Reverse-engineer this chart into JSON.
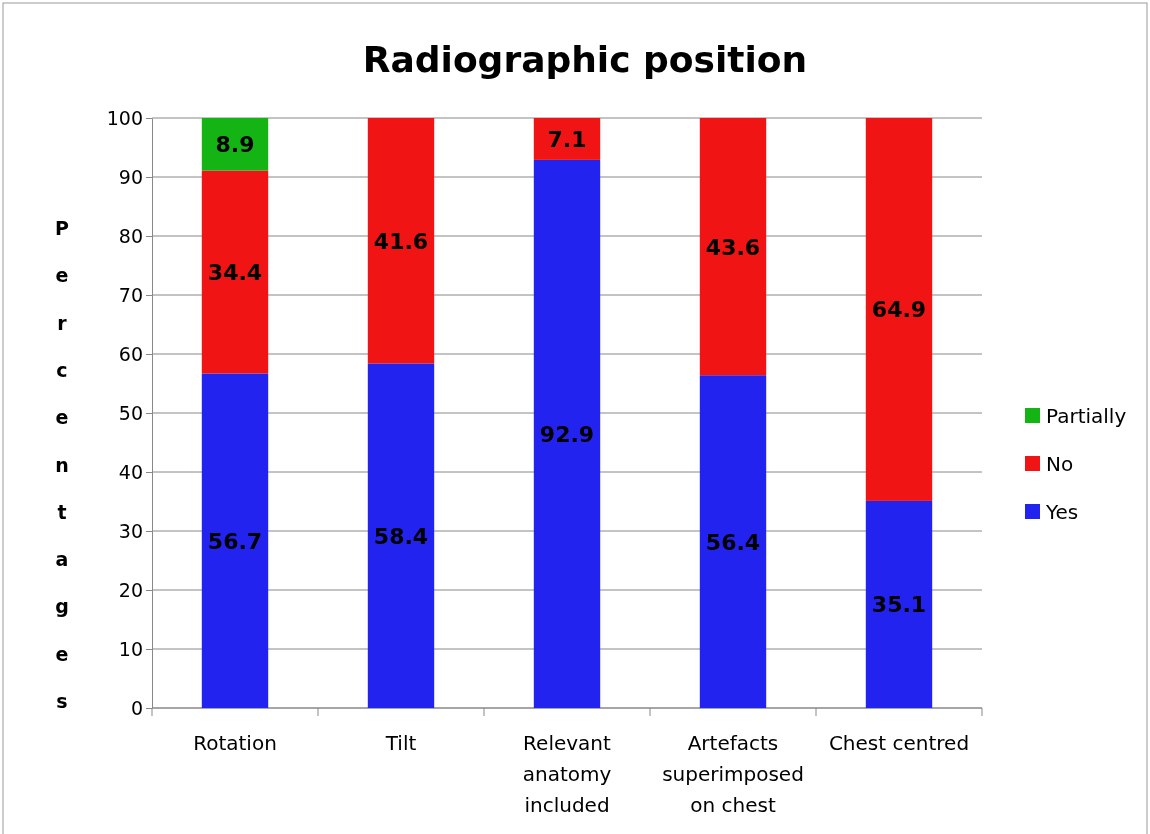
{
  "chart_data": {
    "type": "bar",
    "title": "Radiographic position",
    "ylabel": "Percentages",
    "categories": [
      "Rotation",
      "Tilt",
      "Relevant anatomy included",
      "Artefacts superimposed on chest",
      "Chest centred"
    ],
    "series": [
      {
        "name": "Yes",
        "color": "#2323f0",
        "values": [
          56.7,
          58.4,
          92.9,
          56.4,
          35.1
        ]
      },
      {
        "name": "No",
        "color": "#f01414",
        "values": [
          34.4,
          41.6,
          7.1,
          43.6,
          64.9
        ]
      },
      {
        "name": "Partially",
        "color": "#14b414",
        "values": [
          8.9,
          null,
          null,
          null,
          null
        ]
      }
    ],
    "stacked": true,
    "ylim": [
      0,
      100
    ],
    "yticks": [
      0,
      10,
      20,
      30,
      40,
      50,
      60,
      70,
      80,
      90,
      100
    ],
    "grid": "y",
    "legend": "right",
    "data_labels": true
  }
}
